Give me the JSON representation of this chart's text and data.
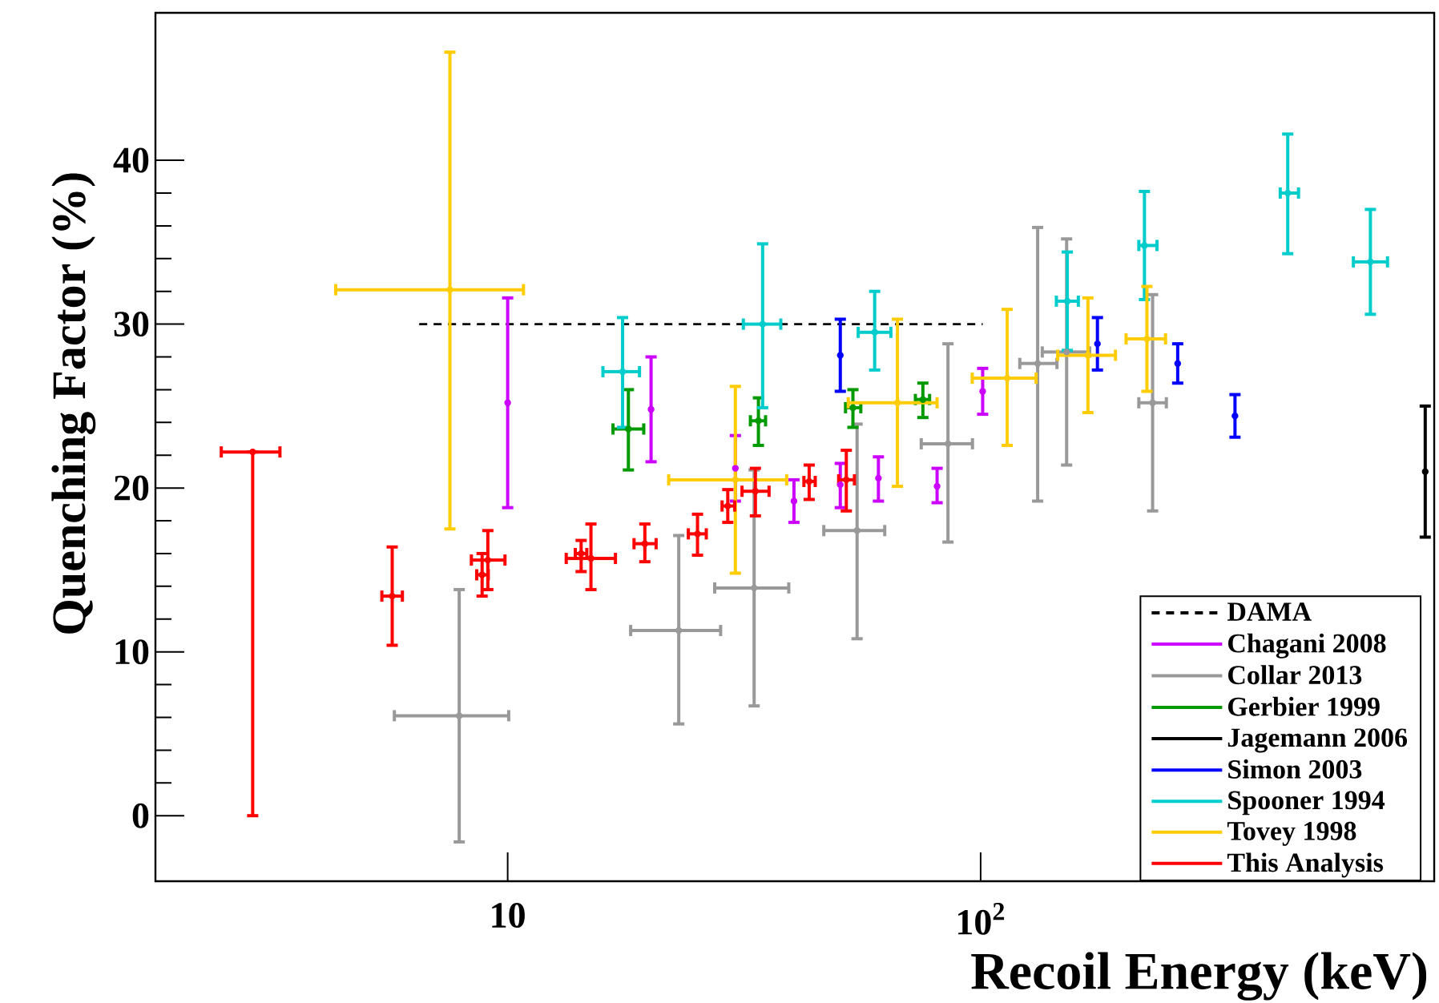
{
  "chart_data": {
    "type": "scatter",
    "xlabel": "Recoil Energy (keV)",
    "ylabel": "Quenching Factor (%)",
    "log": "x",
    "xlim": [
      1.8,
      910
    ],
    "ylim": [
      -4,
      49
    ],
    "xticks": [
      {
        "value": 10,
        "label": "10"
      },
      {
        "value": 100,
        "label": "10$^{2}$"
      }
    ],
    "yticks": [
      0,
      10,
      20,
      30,
      40
    ],
    "legend": "bottom right",
    "series": [
      {
        "name": "DAMA",
        "type": "line",
        "line_style": "dashed",
        "color": "#000000",
        "x": [
          6.5,
          101
        ],
        "values": [
          30,
          30
        ]
      },
      {
        "name": "Chagani 2008",
        "color": "#cc00ff",
        "x": [
          10.0,
          20.1,
          30.3,
          40.3,
          50.5,
          60.8,
          80.9,
          101
        ],
        "values": [
          25.2,
          24.8,
          21.2,
          19.2,
          20.2,
          20.6,
          20.1,
          25.9
        ],
        "errors": [
          [
            18.8,
            31.6
          ],
          [
            21.6,
            28.0
          ],
          [
            19.2,
            23.2
          ],
          [
            17.9,
            20.5
          ],
          [
            18.8,
            21.5
          ],
          [
            19.2,
            21.9
          ],
          [
            19.1,
            21.2
          ],
          [
            24.5,
            27.3
          ]
        ]
      },
      {
        "name": "Collar 2013",
        "color": "#999999",
        "x": [
          7.9,
          23.0,
          33.2,
          54.8,
          85.3,
          132,
          152,
          231
        ],
        "values": [
          6.1,
          11.3,
          13.9,
          17.4,
          22.7,
          27.6,
          28.3,
          25.2
        ],
        "errors": [
          [
            -1.6,
            13.8
          ],
          [
            5.6,
            17.1
          ],
          [
            6.7,
            21.1
          ],
          [
            10.8,
            23.9
          ],
          [
            16.7,
            28.8
          ],
          [
            19.2,
            35.9
          ],
          [
            21.4,
            35.2
          ],
          [
            18.6,
            31.8
          ]
        ],
        "xerrors": [
          [
            5.76,
            10.05
          ],
          [
            18.2,
            28.2
          ],
          [
            27.4,
            39.3
          ],
          [
            46.6,
            62.7
          ],
          [
            74.9,
            96.1
          ],
          [
            121,
            145
          ],
          [
            135,
            170
          ],
          [
            216,
            247
          ]
        ]
      },
      {
        "name": "Gerbier 1999",
        "color": "#009900",
        "x": [
          18.0,
          33.9,
          53.7,
          75.5
        ],
        "values": [
          23.6,
          24.1,
          24.9,
          25.4
        ],
        "errors": [
          [
            21.1,
            26.0
          ],
          [
            22.6,
            25.5
          ],
          [
            23.7,
            26.0
          ],
          [
            24.3,
            26.4
          ]
        ],
        "xerrors": [
          [
            16.7,
            19.4
          ],
          [
            32.6,
            35.1
          ],
          [
            51.8,
            55.8
          ],
          [
            72.8,
            78.0
          ]
        ]
      },
      {
        "name": "Jagemann 2006",
        "color": "#000000",
        "x": [
          871
        ],
        "values": [
          21.0
        ],
        "errors": [
          [
            17.0,
            25.0
          ]
        ]
      },
      {
        "name": "Simon 2003",
        "color": "#0000ff",
        "x": [
          50.5,
          176.6,
          261,
          345
        ],
        "values": [
          28.1,
          28.8,
          27.6,
          24.4
        ],
        "errors": [
          [
            25.9,
            30.3
          ],
          [
            27.2,
            30.4
          ],
          [
            26.4,
            28.8
          ],
          [
            23.1,
            25.7
          ]
        ]
      },
      {
        "name": "Spooner 1994",
        "color": "#00cccc",
        "x": [
          17.5,
          34.6,
          59.7,
          152.5,
          222,
          446,
          667
        ],
        "values": [
          27.1,
          30.0,
          29.5,
          31.4,
          34.8,
          38.0,
          33.8
        ],
        "errors": [
          [
            23.7,
            30.4
          ],
          [
            24.9,
            34.9
          ],
          [
            27.2,
            32.0
          ],
          [
            28.4,
            34.4
          ],
          [
            31.5,
            38.1
          ],
          [
            34.3,
            41.6
          ],
          [
            30.6,
            37.0
          ]
        ],
        "xerrors": [
          [
            15.9,
            19.0
          ],
          [
            31.5,
            37.8
          ],
          [
            55.1,
            64.6
          ],
          [
            144.6,
            160.9
          ],
          [
            216,
            236
          ],
          [
            430,
            470
          ],
          [
            614,
            725
          ]
        ]
      },
      {
        "name": "Tovey 1998",
        "color": "#ffcc00",
        "x": [
          7.55,
          30.3,
          66.7,
          113.8,
          168.6,
          224.7
        ],
        "values": [
          32.1,
          20.5,
          25.2,
          26.7,
          28.1,
          29.1
        ],
        "errors": [
          [
            17.5,
            46.6
          ],
          [
            14.8,
            26.2
          ],
          [
            20.1,
            30.3
          ],
          [
            22.6,
            30.9
          ],
          [
            24.6,
            31.6
          ],
          [
            25.9,
            32.3
          ]
        ],
        "xerrors": [
          [
            4.33,
            10.8
          ],
          [
            21.9,
            38.9
          ],
          [
            52.5,
            80.9
          ],
          [
            96,
            131
          ],
          [
            145.5,
            192.8
          ],
          [
            203,
            246
          ]
        ]
      },
      {
        "name": "This Analysis",
        "color": "#ff0000",
        "x": [
          2.89,
          5.7,
          8.83,
          9.08,
          14.3,
          15.0,
          19.5,
          25.2,
          29.2,
          33.4,
          43.4,
          52.0
        ],
        "values": [
          22.2,
          13.4,
          14.7,
          15.6,
          16.0,
          15.7,
          16.6,
          17.2,
          18.9,
          19.8,
          20.4,
          20.5
        ],
        "errors": [
          [
            0,
            22.2
          ],
          [
            10.4,
            16.4
          ],
          [
            13.4,
            16.0
          ],
          [
            13.8,
            17.4
          ],
          [
            14.9,
            16.8
          ],
          [
            13.8,
            17.8
          ],
          [
            15.5,
            17.8
          ],
          [
            15.9,
            18.4
          ],
          [
            17.9,
            19.9
          ],
          [
            18.3,
            21.2
          ],
          [
            19.3,
            21.4
          ],
          [
            18.6,
            22.3
          ]
        ],
        "xerrors": [
          [
            2.48,
            3.3
          ],
          [
            5.42,
            5.99
          ],
          [
            8.6,
            9.1
          ],
          [
            8.38,
            9.87
          ],
          [
            13.9,
            14.7
          ],
          [
            13.3,
            16.9
          ],
          [
            18.5,
            20.6
          ],
          [
            24.1,
            26.3
          ],
          [
            28.4,
            30.2
          ],
          [
            31.3,
            35.7
          ],
          [
            42.3,
            44.7
          ],
          [
            50.1,
            54.1
          ]
        ]
      }
    ]
  }
}
